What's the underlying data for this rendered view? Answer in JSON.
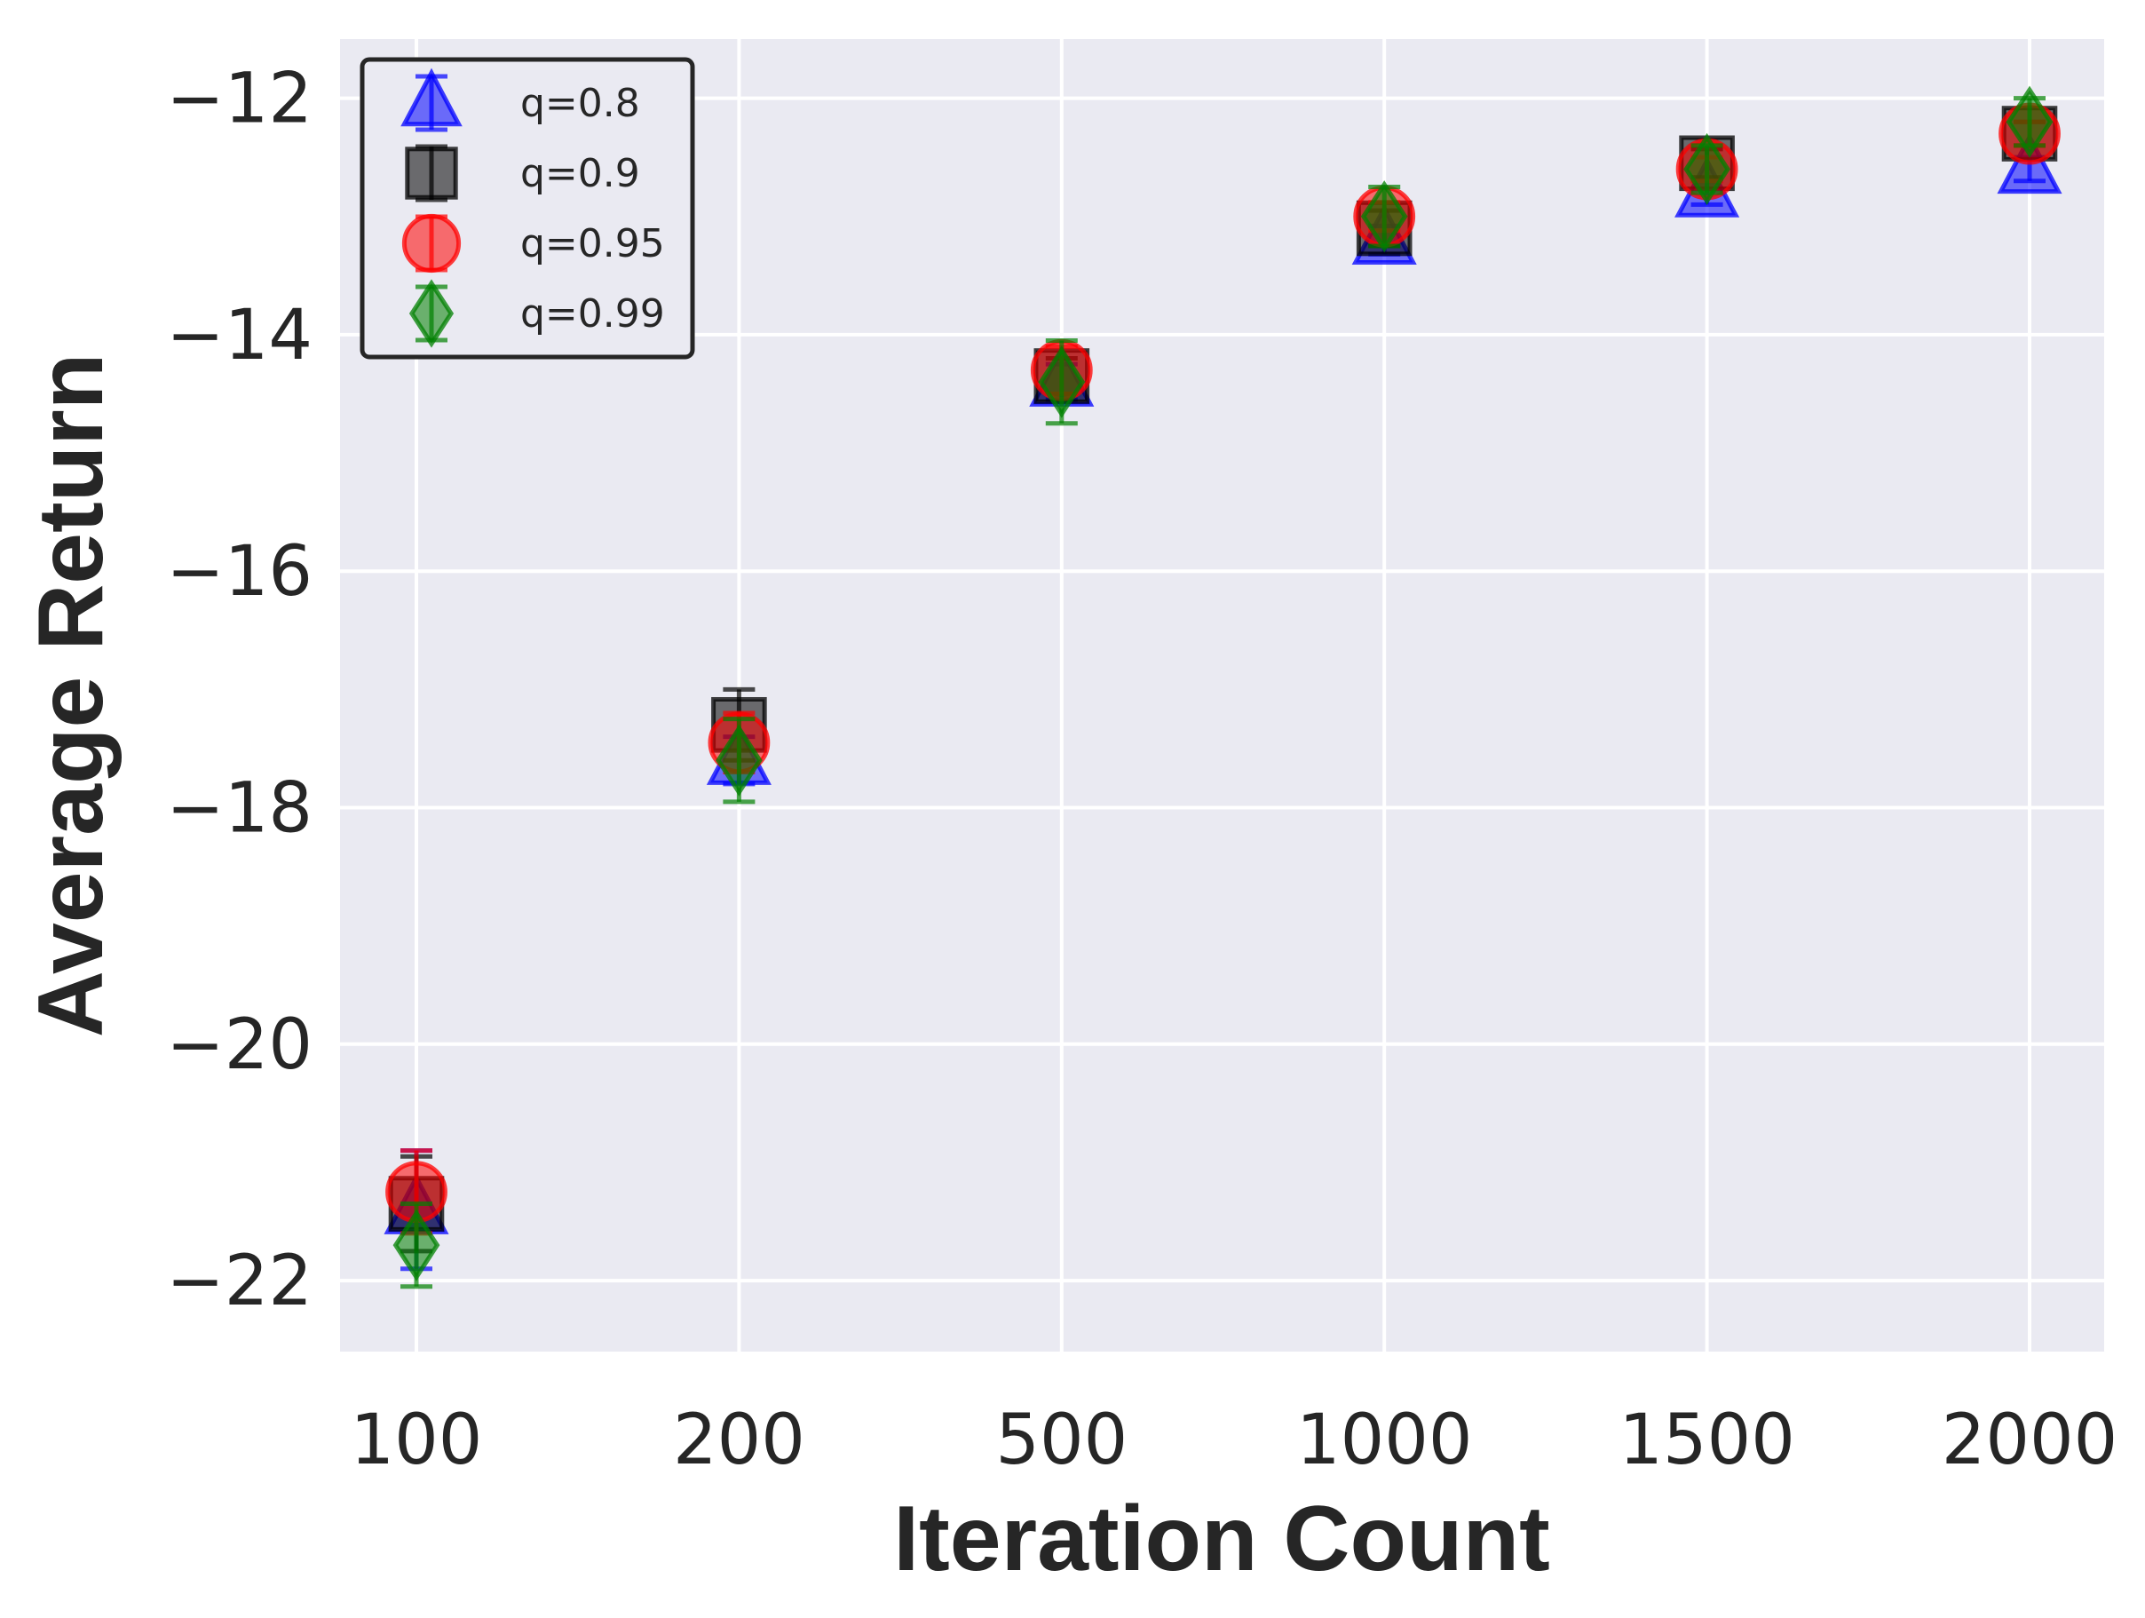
{
  "chart_data": {
    "type": "scatter",
    "title": "",
    "xlabel": "Iteration Count",
    "ylabel": "Average Return",
    "x_categorical": true,
    "categories": [
      "100",
      "200",
      "500",
      "1000",
      "1500",
      "2000"
    ],
    "ylim": [
      -22.6,
      -11.5
    ],
    "yticks": [
      -12,
      -14,
      -16,
      -18,
      -20,
      -22
    ],
    "ytick_labels": [
      "−12",
      "−14",
      "−16",
      "−18",
      "−20",
      "−22"
    ],
    "grid": true,
    "legend_position": "top-left",
    "series": [
      {
        "name": "q=0.8",
        "marker": "triangle",
        "color": "#0000ff",
        "values": [
          -21.4,
          -17.6,
          -14.4,
          -13.2,
          -12.8,
          -12.6
        ],
        "errors": [
          0.5,
          0.2,
          0.15,
          0.12,
          0.1,
          0.1
        ]
      },
      {
        "name": "q=0.9",
        "marker": "square",
        "color": "#000000",
        "values": [
          -21.35,
          -17.3,
          -14.35,
          -13.1,
          -12.55,
          -12.3
        ],
        "errors": [
          0.4,
          0.3,
          0.15,
          0.15,
          0.12,
          0.1
        ]
      },
      {
        "name": "q=0.95",
        "marker": "circle",
        "color": "#ff0000",
        "values": [
          -21.25,
          -17.45,
          -14.3,
          -13.0,
          -12.6,
          -12.3
        ],
        "errors": [
          0.35,
          0.25,
          0.2,
          0.12,
          0.1,
          0.1
        ]
      },
      {
        "name": "q=0.99",
        "marker": "diamond",
        "color": "#008000",
        "values": [
          -21.7,
          -17.6,
          -14.4,
          -13.0,
          -12.6,
          -12.2
        ],
        "errors": [
          0.35,
          0.35,
          0.35,
          0.25,
          0.2,
          0.2
        ]
      }
    ]
  }
}
